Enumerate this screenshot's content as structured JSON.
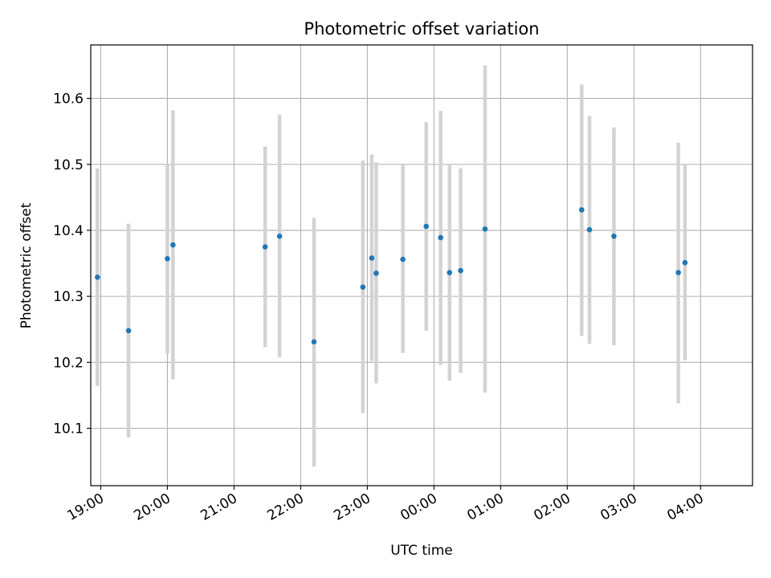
{
  "chart_data": {
    "type": "scatter",
    "title": "Photometric offset variation",
    "xlabel": "UTC time",
    "ylabel": "Photometric offset",
    "x_tick_labels": [
      "19:00",
      "20:00",
      "21:00",
      "22:00",
      "23:00",
      "00:00",
      "01:00",
      "02:00",
      "03:00",
      "04:00"
    ],
    "y_ticks": [
      10.1,
      10.2,
      10.3,
      10.4,
      10.5,
      10.6
    ],
    "y_tick_labels": [
      "10.1",
      "10.2",
      "10.3",
      "10.4",
      "10.5",
      "10.6"
    ],
    "ylim": [
      10.013,
      10.681
    ],
    "xlim_hours": [
      18.85,
      28.78
    ],
    "grid": true,
    "point_color": "#1f77b4",
    "errorbar_color": "#d3d3d3",
    "points": [
      {
        "t": "18:57",
        "y": 10.329,
        "lo": 10.164,
        "hi": 10.494
      },
      {
        "t": "19:25",
        "y": 10.248,
        "lo": 10.086,
        "hi": 10.41
      },
      {
        "t": "20:00",
        "y": 10.357,
        "lo": 10.213,
        "hi": 10.5
      },
      {
        "t": "20:05",
        "y": 10.378,
        "lo": 10.174,
        "hi": 10.582
      },
      {
        "t": "21:28",
        "y": 10.375,
        "lo": 10.223,
        "hi": 10.527
      },
      {
        "t": "21:41",
        "y": 10.391,
        "lo": 10.208,
        "hi": 10.575
      },
      {
        "t": "22:12",
        "y": 10.231,
        "lo": 10.042,
        "hi": 10.419
      },
      {
        "t": "22:56",
        "y": 10.314,
        "lo": 10.123,
        "hi": 10.506
      },
      {
        "t": "23:04",
        "y": 10.358,
        "lo": 10.202,
        "hi": 10.515
      },
      {
        "t": "23:08",
        "y": 10.335,
        "lo": 10.168,
        "hi": 10.503
      },
      {
        "t": "23:32",
        "y": 10.356,
        "lo": 10.214,
        "hi": 10.499
      },
      {
        "t": "23:53",
        "y": 10.406,
        "lo": 10.248,
        "hi": 10.564
      },
      {
        "t": "00:06",
        "y": 10.389,
        "lo": 10.196,
        "hi": 10.581
      },
      {
        "t": "00:14",
        "y": 10.336,
        "lo": 10.172,
        "hi": 10.499
      },
      {
        "t": "00:24",
        "y": 10.339,
        "lo": 10.184,
        "hi": 10.494
      },
      {
        "t": "00:46",
        "y": 10.402,
        "lo": 10.154,
        "hi": 10.65
      },
      {
        "t": "02:13",
        "y": 10.431,
        "lo": 10.24,
        "hi": 10.621
      },
      {
        "t": "02:20",
        "y": 10.401,
        "lo": 10.228,
        "hi": 10.573
      },
      {
        "t": "02:42",
        "y": 10.391,
        "lo": 10.226,
        "hi": 10.556
      },
      {
        "t": "03:40",
        "y": 10.336,
        "lo": 10.138,
        "hi": 10.533
      },
      {
        "t": "03:46",
        "y": 10.351,
        "lo": 10.203,
        "hi": 10.499
      }
    ]
  }
}
